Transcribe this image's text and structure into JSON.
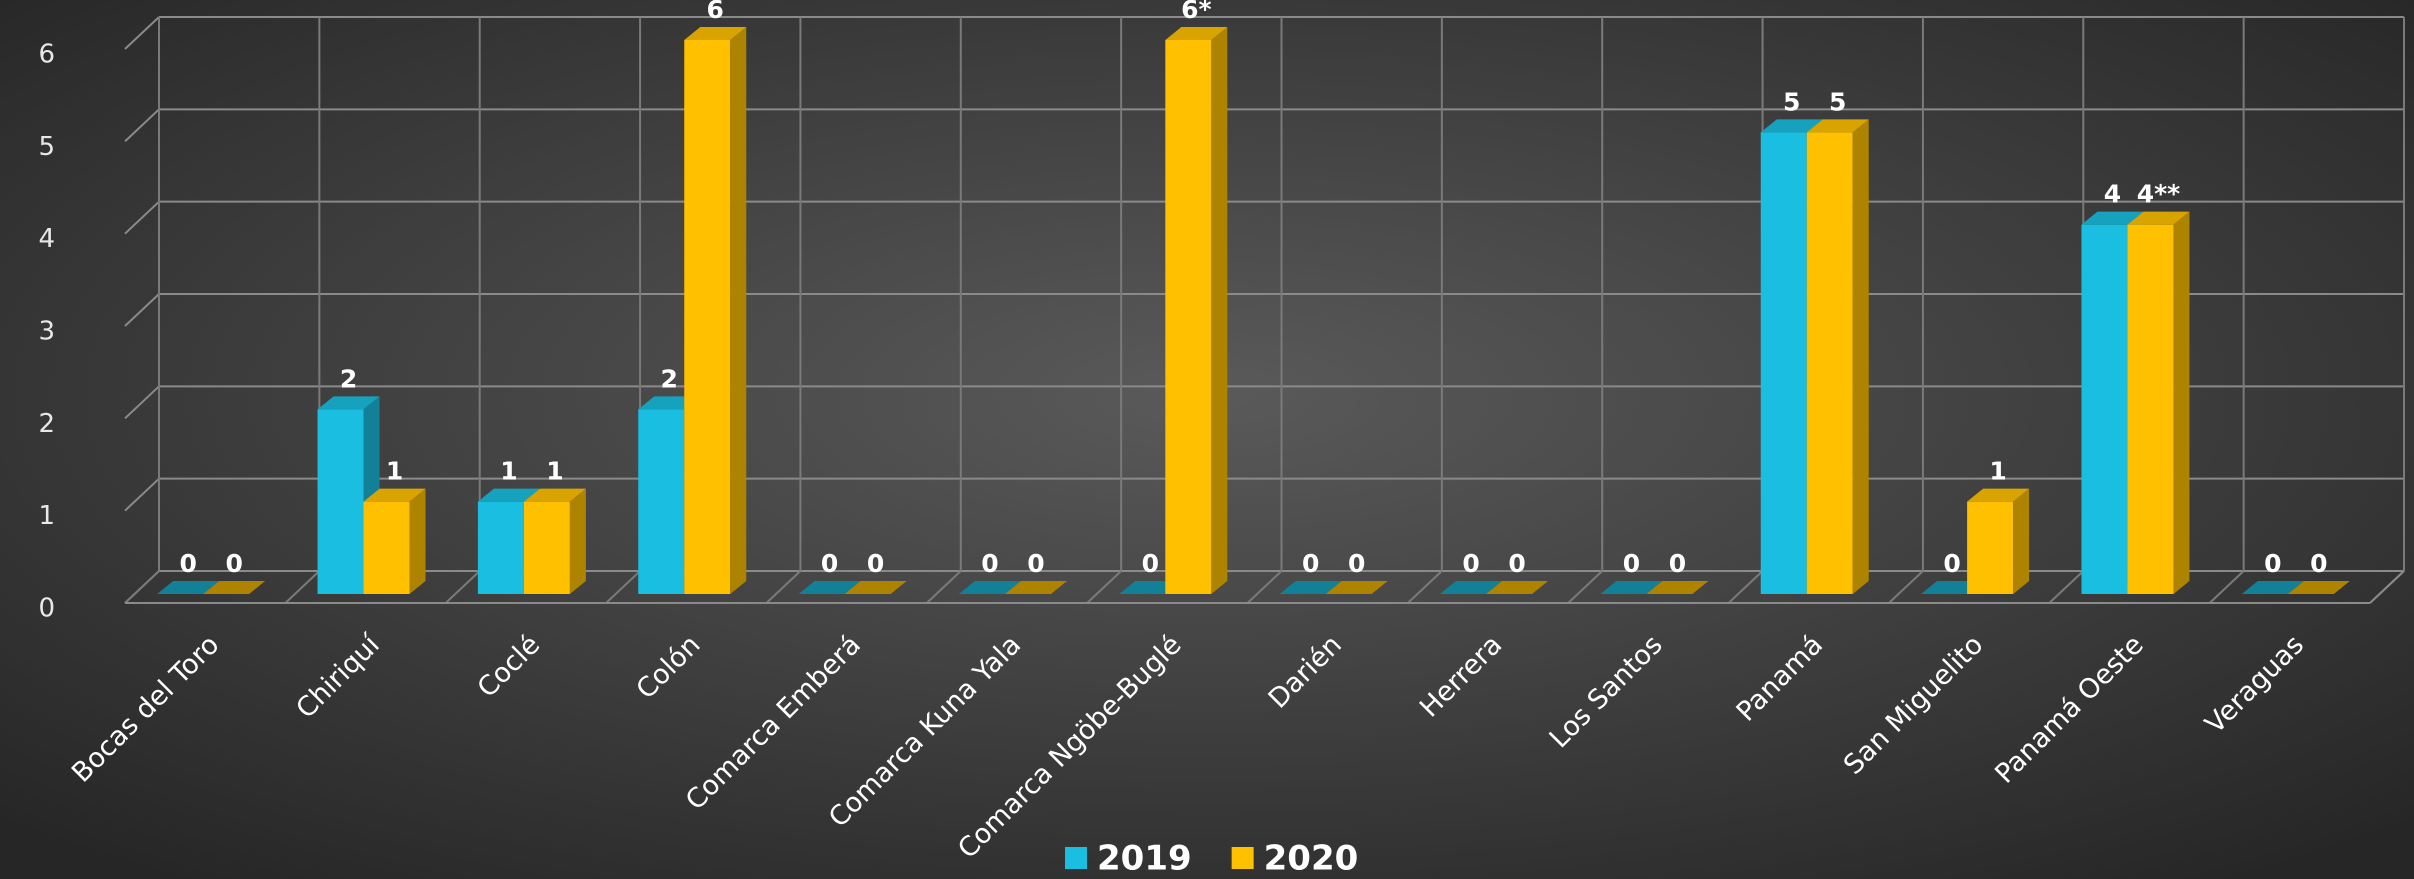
{
  "chart_data": {
    "type": "bar3d",
    "categories": [
      "Bocas del Toro",
      "Chiriquí",
      "Coclé",
      "Colón",
      "Comarca Emberá",
      "Comarca Kuna Yala",
      "Comarca Ngöbe-Buglé",
      "Darién",
      "Herrera",
      "Los Santos",
      "Panamá",
      "San Miguelito",
      "Panamá Oeste",
      "Veraguas"
    ],
    "series": [
      {
        "name": "2019",
        "color": "#1ABEE0",
        "values": [
          0,
          2,
          1,
          2,
          0,
          0,
          0,
          0,
          0,
          0,
          5,
          0,
          4,
          0
        ]
      },
      {
        "name": "2020",
        "color": "#FFC000",
        "values": [
          0,
          1,
          1,
          6,
          0,
          0,
          6,
          0,
          0,
          0,
          5,
          1,
          4,
          0
        ],
        "value_labels": [
          "0",
          "1",
          "1",
          "6",
          "0",
          "0",
          "6*",
          "0",
          "0",
          "0",
          "5",
          "1",
          "4**",
          "0"
        ]
      }
    ],
    "ylim": [
      0,
      6
    ],
    "yticks": [
      0,
      1,
      2,
      3,
      4,
      5,
      6
    ],
    "grid": true,
    "legend": "bottom"
  }
}
